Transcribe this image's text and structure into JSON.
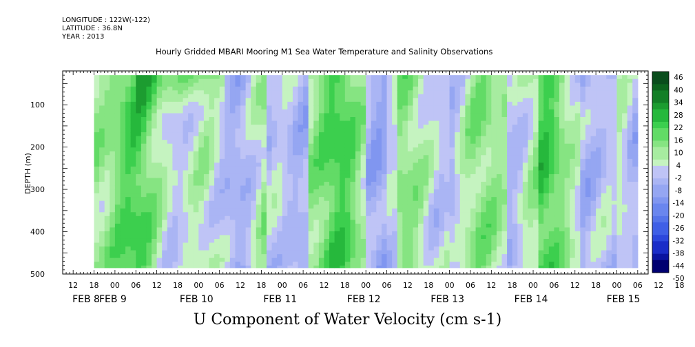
{
  "header": {
    "longitude": "LONGITUDE : 122W(-122)",
    "latitude": "LATITUDE : 36.8N",
    "year": "YEAR : 2013",
    "title": "Hourly Gridded MBARI Mooring M1 Sea Water Temperature and Salinity Observations"
  },
  "chart_data": {
    "type": "heatmap",
    "title": "U Component of Water Velocity (cm s-1)",
    "ylabel": "DEPTH (m)",
    "ylim": [
      500,
      20
    ],
    "y_axis_inverted": true,
    "y_ticks": [
      "100",
      "200",
      "300",
      "400",
      "500"
    ],
    "y_tick_values": [
      100,
      200,
      300,
      400,
      500
    ],
    "x_hour_ticks": [
      "12",
      "18",
      "00",
      "06",
      "12",
      "18",
      "00",
      "06",
      "12",
      "18",
      "00",
      "06",
      "12",
      "18",
      "00",
      "06",
      "12",
      "18",
      "00",
      "06",
      "12",
      "18",
      "00",
      "06",
      "12",
      "18",
      "00",
      "06",
      "12",
      "18",
      "00",
      "06"
    ],
    "x_date_labels": [
      "FEB  8",
      "FEB  9",
      "FEB 10",
      "FEB 11",
      "FEB 12",
      "FEB 13",
      "FEB 14",
      "FEB 15"
    ],
    "x_range_hours": [
      "FEB 8 09",
      "FEB 15 09"
    ],
    "data_depth_range_m": [
      30,
      485
    ],
    "colorbar_labels": [
      "46",
      "40",
      "34",
      "28",
      "22",
      "16",
      "10",
      "4",
      "-2",
      "-8",
      "-14",
      "-20",
      "-26",
      "-32",
      "-38",
      "-44",
      "-50"
    ],
    "colorbar_values": [
      46,
      40,
      34,
      28,
      22,
      16,
      10,
      4,
      -2,
      -8,
      -14,
      -20,
      -26,
      -32,
      -38,
      -44,
      -50
    ],
    "colorbar_range": [
      -50,
      46
    ],
    "colorbar_step": 3,
    "colors": {
      "strong_positive": "#0a4d1c",
      "positive": "#2fcf4e",
      "weak_positive": "#b8f2b0",
      "weak_negative": "#b4b4f2",
      "negative": "#6a7ee8",
      "strong_negative": "#000070"
    },
    "dominant_pattern": "Alternating bands of weak positive (green, roughly 4 to 22) and weak negative (lavender/blue, roughly -2 to -20) velocity through the water column; strongest positive values (up to ~30) near the surface around FEB 9; negative bands dominant around FEB 12 00-06 and FEB 14."
  }
}
